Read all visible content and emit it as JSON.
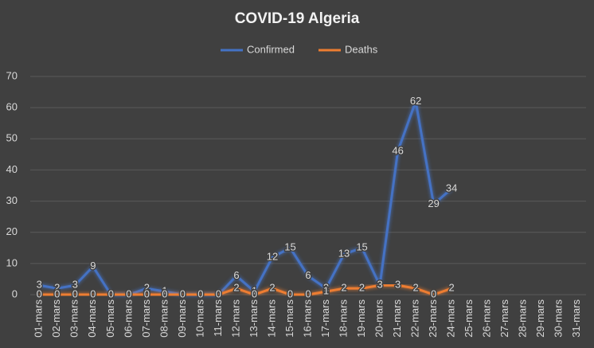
{
  "chart_data": {
    "type": "line",
    "title": "COVID-19 Algeria",
    "categories": [
      "01-mars",
      "02-mars",
      "03-mars",
      "04-mars",
      "05-mars",
      "06-mars",
      "07-mars",
      "08-mars",
      "09-mars",
      "10-mars",
      "11-mars",
      "12-mars",
      "13-mars",
      "14-mars",
      "15-mars",
      "16-mars",
      "17-mars",
      "18-mars",
      "19-mars",
      "20-mars",
      "21-mars",
      "22-mars",
      "23-mars",
      "24-mars",
      "25-mars",
      "26-mars",
      "27-mars",
      "28-mars",
      "29-mars",
      "30-mars",
      "31-mars"
    ],
    "series": [
      {
        "name": "Confirmed",
        "color": "#4472c4",
        "values": [
          3,
          2,
          3,
          9,
          0,
          0,
          2,
          1,
          0,
          0,
          0,
          6,
          1,
          12,
          15,
          6,
          2,
          13,
          15,
          3,
          46,
          62,
          29,
          34,
          null,
          null,
          null,
          null,
          null,
          null,
          null
        ]
      },
      {
        "name": "Deaths",
        "color": "#ed7d31",
        "values": [
          0,
          0,
          0,
          0,
          0,
          0,
          0,
          0,
          0,
          0,
          0,
          2,
          0,
          2,
          0,
          0,
          1,
          2,
          2,
          3,
          3,
          2,
          0,
          2,
          null,
          null,
          null,
          null,
          null,
          null,
          null
        ]
      }
    ],
    "ylim": [
      0,
      70
    ],
    "yticks": [
      0,
      10,
      20,
      30,
      40,
      50,
      60,
      70
    ],
    "grid": true,
    "legend": "top"
  }
}
